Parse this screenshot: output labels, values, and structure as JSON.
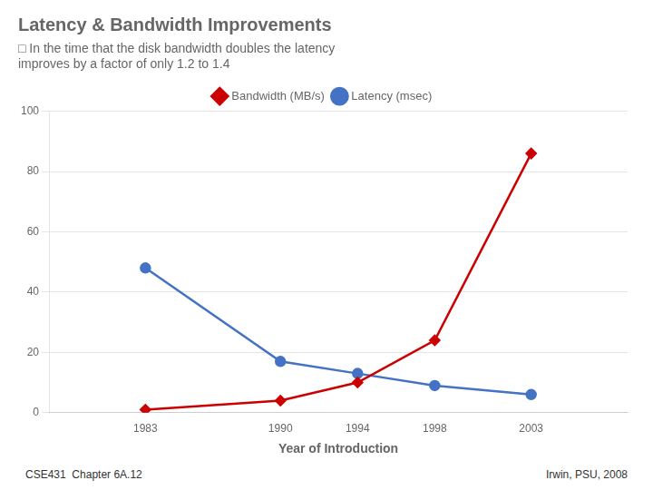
{
  "chart_data": {
    "type": "line",
    "title": "Latency & Bandwidth Improvements",
    "subtitle": [
      "□ In the time that the disk bandwidth doubles the latency",
      "improves by a factor of only 1.2 to 1.4"
    ],
    "footer": [
      "CSE431  Chapter 6A.12",
      "Irwin, PSU, 2008"
    ],
    "x_label": "Year of Introduction",
    "x": [
      1983,
      1990,
      1994,
      1998,
      2003
    ],
    "series": [
      {
        "name": "Bandwidth (MB/s)",
        "color": "#CC0000",
        "marker": "diamond",
        "values": [
          1,
          4,
          10,
          24,
          86
        ]
      },
      {
        "name": "Latency (msec)",
        "color": "#4472C4",
        "marker": "circle",
        "values": [
          48,
          17,
          13,
          9,
          6
        ]
      }
    ],
    "xlim": [
      1978,
      2008
    ],
    "xticks": [
      1983,
      1990,
      1994,
      1998,
      2003
    ],
    "ylim": [
      0,
      100
    ],
    "yticks": [
      0,
      20,
      40,
      60,
      80,
      100
    ],
    "grid": "y",
    "legend": "top"
  }
}
